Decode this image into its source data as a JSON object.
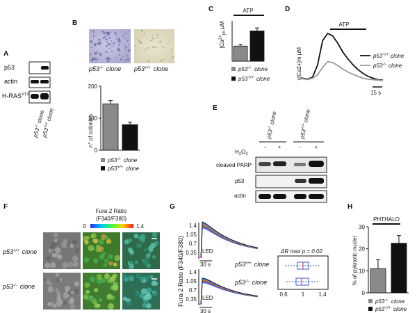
{
  "panels": {
    "A": {
      "letter": "A",
      "rows": [
        "p53",
        "actin",
        "H-RAS"
      ],
      "ras_sup": "V12",
      "lanes": [
        "p53",
        "-/-",
        "clone",
        "p53",
        "+/+",
        "clone"
      ],
      "lane_labels": [
        {
          "base": "p53",
          "sup": "-/-",
          "rest": "clone"
        },
        {
          "base": "p53",
          "sup": "+/+",
          "rest": "clone"
        }
      ]
    },
    "B": {
      "letter": "B",
      "image_labels": [
        {
          "base": "p53",
          "sup": "-/-",
          "rest": "clone"
        },
        {
          "base": "p53",
          "sup": "+/+",
          "rest": "clone"
        }
      ],
      "ylabel": "n° of colonies",
      "legend": [
        {
          "base": "p53",
          "sup": "-/-",
          "rest": "clone"
        },
        {
          "base": "p53",
          "sup": "+/+",
          "rest": "clone"
        }
      ]
    },
    "C": {
      "letter": "C",
      "stim": "ATP",
      "ylabel_base": "[Ca",
      "ylabel_sup": "2+",
      "ylabel_sub": "]m",
      "ylabel_unit": "µM",
      "legend": [
        {
          "base": "p53",
          "sup": "-/-",
          "rest": "clone"
        },
        {
          "base": "p53",
          "sup": "+/+",
          "rest": "clone"
        }
      ]
    },
    "D": {
      "letter": "D",
      "stim": "ATP",
      "ylabel": "[Ca2+]m µM",
      "legend": [
        {
          "base": "p53",
          "sup": "+/+",
          "rest": "clone"
        },
        {
          "base": "p53",
          "sup": "-/-",
          "rest": "clone"
        }
      ],
      "scale": "15 s"
    },
    "E": {
      "letter": "E",
      "treatment_base": "H",
      "treatment_sub": "2",
      "treatment_mid": "O",
      "treatment_sub2": "2",
      "signs": [
        "-",
        "+",
        "-",
        "+"
      ],
      "rows": [
        "cleaved PARP",
        "p53",
        "actin"
      ],
      "lane_labels": [
        {
          "base": "p53",
          "sup": "-/-",
          "rest": "clone"
        },
        {
          "base": "p53",
          "sup": "+/+",
          "rest": "clone"
        }
      ]
    },
    "F": {
      "letter": "F",
      "colorbar_title": "Fura-2 Ratio",
      "colorbar_sub": "(F340/F380)",
      "colorbar_min": "0",
      "colorbar_max": "1.4",
      "rows": [
        {
          "base": "p53",
          "sup": "+/+",
          "rest": "clone"
        },
        {
          "base": "p53",
          "sup": "-/-",
          "rest": "clone"
        }
      ]
    },
    "G": {
      "letter": "G",
      "ylabel": "Fura-2 Ratio (F340/F380)",
      "yticks_top": [
        "1.4",
        "1.05",
        "0.7",
        "0.35"
      ],
      "yticks_bottom": [
        "1.4",
        "1.05",
        "0.7",
        "0.35"
      ],
      "led": "LED",
      "scale": "30 s",
      "rows": [
        {
          "base": "p53",
          "sup": "+/+",
          "rest": "clone"
        },
        {
          "base": "p53",
          "sup": "-/-",
          "rest": "clone"
        }
      ],
      "box_title": "ΔR max p = 0.02",
      "box_ticks": [
        "0.6",
        "1",
        "1.4"
      ]
    },
    "H": {
      "letter": "H",
      "stim": "PHTHALO",
      "ylabel": "% of pyknotic nuclei",
      "yticks": [
        "0",
        "10",
        "20",
        "30"
      ],
      "legend": [
        {
          "base": "p53",
          "sup": "-/-",
          "rest": "clone"
        },
        {
          "base": "p53",
          "sup": "+/+",
          "rest": "clone"
        }
      ]
    }
  },
  "chart_data": [
    {
      "type": "bar",
      "panel": "B",
      "categories": [
        "p53-/- clone",
        "p53+/+ clone"
      ],
      "values": [
        145,
        80
      ],
      "errors": [
        10,
        8
      ],
      "ylim": [
        0,
        200
      ],
      "yticks": [
        0,
        100,
        200
      ],
      "colors": [
        "#8a8a8a",
        "#111111"
      ]
    },
    {
      "type": "bar",
      "panel": "C",
      "categories": [
        "p53-/- clone",
        "p53+/+ clone"
      ],
      "values": [
        3.0,
        6.0
      ],
      "errors": [
        0.35,
        0.6
      ],
      "ylim": [
        0,
        8
      ],
      "colors": [
        "#8a8a8a",
        "#111111"
      ]
    },
    {
      "type": "line",
      "panel": "D",
      "series": [
        {
          "name": "p53+/+ clone",
          "color": "#111111",
          "values": [
            0.05,
            0.08,
            0.06,
            0.1,
            0.35,
            0.85,
            1.0,
            0.95,
            0.8,
            0.62,
            0.48,
            0.36,
            0.26,
            0.18,
            0.12,
            0.08,
            0.05,
            0.04
          ]
        },
        {
          "name": "p53-/- clone",
          "color": "#9a9a9a",
          "values": [
            0.05,
            0.07,
            0.05,
            0.08,
            0.15,
            0.3,
            0.42,
            0.4,
            0.34,
            0.27,
            0.21,
            0.16,
            0.12,
            0.08,
            0.06,
            0.05,
            0.04,
            0.03
          ]
        }
      ]
    },
    {
      "type": "bar",
      "panel": "H",
      "categories": [
        "p53-/- clone",
        "p53+/+ clone"
      ],
      "values": [
        11,
        22.5
      ],
      "errors": [
        4,
        3.5
      ],
      "ylim": [
        0,
        30
      ],
      "yticks": [
        0,
        10,
        20,
        30
      ],
      "colors": [
        "#8a8a8a",
        "#111111"
      ]
    }
  ]
}
